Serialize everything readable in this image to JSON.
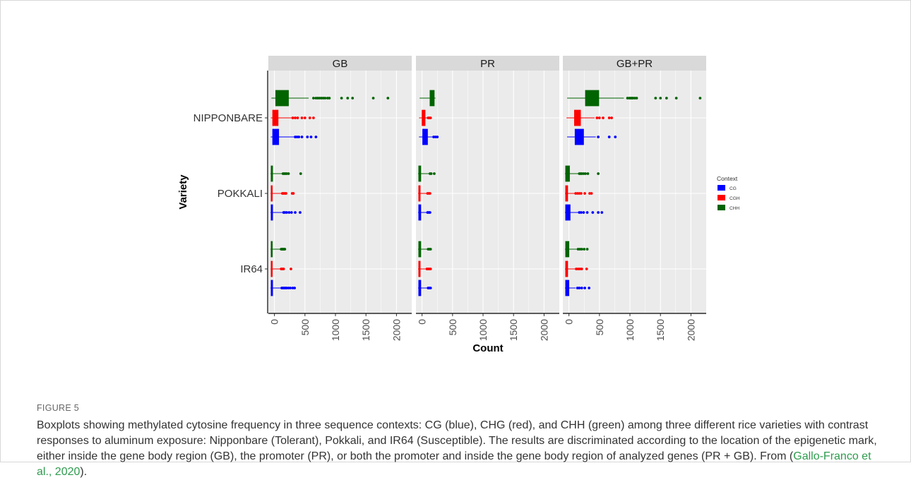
{
  "figure": {
    "label": "FIGURE 5",
    "caption": "Boxplots showing methylated cytosine frequency in three sequence contexts: CG (blue), CHG (red), and CHH (green) among three different rice varieties with contrast responses to aluminum exposure: Nipponbare (Tolerant), Pokkali, and IR64 (Susceptible). The results are discriminated according to the location of the epigenetic mark, either inside the gene body region (GB), the promoter (PR), or both the promoter and inside the gene body region of analyzed genes (PR + GB). From (",
    "citation": "Gallo-Franco et al., 2020",
    "caption_end": ")."
  },
  "colors": {
    "CG": "#0000ff",
    "CGH": "#ff0000",
    "CHH": "#006400",
    "panel_bg": "#ebebeb",
    "strip_bg": "#d9d9d9",
    "grid": "#ffffff"
  },
  "chart_data": {
    "type": "boxplot",
    "orientation": "horizontal",
    "xlabel": "Count",
    "ylabel": "Variety",
    "xlim": [
      -100,
      2250
    ],
    "x_ticks": [
      0,
      500,
      1000,
      1500,
      2000
    ],
    "x_tick_labels": [
      "0",
      "500",
      "1000",
      "1500",
      "2000"
    ],
    "categories": [
      "NIPPONBARE",
      "POKKALI",
      "IR64"
    ],
    "panels": [
      "GB",
      "PR",
      "GB+PR"
    ],
    "legend": {
      "title": "Context",
      "entries": [
        "CG",
        "CGH",
        "CHH"
      ],
      "position": "right"
    },
    "series": [
      {
        "panel": "GB",
        "variety": "NIPPONBARE",
        "context": "CHH",
        "q1": 20,
        "median": 150,
        "q3": 230,
        "wmin": -50,
        "wmax": 560,
        "outliers": [
          640,
          680,
          710,
          740,
          770,
          800,
          830,
          870,
          900,
          1100,
          1200,
          1280,
          1620,
          1860
        ]
      },
      {
        "panel": "GB",
        "variety": "NIPPONBARE",
        "context": "CGH",
        "q1": -30,
        "median": 20,
        "q3": 60,
        "wmin": -60,
        "wmax": 280,
        "outliers": [
          300,
          340,
          380,
          450,
          500,
          580,
          640
        ]
      },
      {
        "panel": "GB",
        "variety": "NIPPONBARE",
        "context": "CG",
        "q1": -30,
        "median": 10,
        "q3": 70,
        "wmin": -60,
        "wmax": 320,
        "outliers": [
          340,
          370,
          400,
          450,
          540,
          600,
          680
        ]
      },
      {
        "panel": "GB",
        "variety": "POKKALI",
        "context": "CHH",
        "q1": -55,
        "median": -45,
        "q3": -30,
        "wmin": -65,
        "wmax": 120,
        "outliers": [
          140,
          160,
          180,
          200,
          230,
          430
        ]
      },
      {
        "panel": "GB",
        "variety": "POKKALI",
        "context": "CGH",
        "q1": -55,
        "median": -45,
        "q3": -35,
        "wmin": -65,
        "wmax": 110,
        "outliers": [
          130,
          150,
          170,
          190,
          290,
          310
        ]
      },
      {
        "panel": "GB",
        "variety": "POKKALI",
        "context": "CG",
        "q1": -55,
        "median": -45,
        "q3": -30,
        "wmin": -65,
        "wmax": 130,
        "outliers": [
          150,
          170,
          200,
          240,
          280,
          340,
          420
        ]
      },
      {
        "panel": "GB",
        "variety": "IR64",
        "context": "CHH",
        "q1": -55,
        "median": -45,
        "q3": -35,
        "wmin": -65,
        "wmax": 100,
        "outliers": [
          110,
          120,
          130,
          140,
          150,
          160,
          170
        ]
      },
      {
        "panel": "GB",
        "variety": "IR64",
        "context": "CGH",
        "q1": -55,
        "median": -45,
        "q3": -35,
        "wmin": -65,
        "wmax": 90,
        "outliers": [
          110,
          130,
          150,
          270
        ]
      },
      {
        "panel": "GB",
        "variety": "IR64",
        "context": "CG",
        "q1": -55,
        "median": -45,
        "q3": -30,
        "wmin": -65,
        "wmax": 110,
        "outliers": [
          120,
          140,
          160,
          180,
          200,
          230,
          260,
          300,
          330
        ]
      },
      {
        "panel": "PR",
        "variety": "NIPPONBARE",
        "context": "CHH",
        "q1": 130,
        "median": 160,
        "q3": 200,
        "wmin": -40,
        "wmax": 220,
        "outliers": []
      },
      {
        "panel": "PR",
        "variety": "NIPPONBARE",
        "context": "CGH",
        "q1": 0,
        "median": 30,
        "q3": 50,
        "wmin": -50,
        "wmax": 90,
        "outliers": [
          100,
          120,
          140
        ]
      },
      {
        "panel": "PR",
        "variety": "NIPPONBARE",
        "context": "CG",
        "q1": 10,
        "median": 40,
        "q3": 90,
        "wmin": -50,
        "wmax": 170,
        "outliers": [
          190,
          220,
          250
        ]
      },
      {
        "panel": "PR",
        "variety": "POKKALI",
        "context": "CHH",
        "q1": -55,
        "median": -45,
        "q3": -20,
        "wmin": -65,
        "wmax": 110,
        "outliers": [
          130,
          150,
          200
        ]
      },
      {
        "panel": "PR",
        "variety": "POKKALI",
        "context": "CGH",
        "q1": -55,
        "median": -45,
        "q3": -30,
        "wmin": -65,
        "wmax": 70,
        "outliers": [
          90,
          110,
          130
        ]
      },
      {
        "panel": "PR",
        "variety": "POKKALI",
        "context": "CG",
        "q1": -55,
        "median": -45,
        "q3": -20,
        "wmin": -65,
        "wmax": 70,
        "outliers": [
          90,
          110,
          130
        ]
      },
      {
        "panel": "PR",
        "variety": "IR64",
        "context": "CHH",
        "q1": -55,
        "median": -45,
        "q3": -20,
        "wmin": -65,
        "wmax": 80,
        "outliers": [
          100,
          120,
          140
        ]
      },
      {
        "panel": "PR",
        "variety": "IR64",
        "context": "CGH",
        "q1": -55,
        "median": -45,
        "q3": -30,
        "wmin": -65,
        "wmax": 60,
        "outliers": [
          80,
          100,
          120,
          140
        ]
      },
      {
        "panel": "PR",
        "variety": "IR64",
        "context": "CG",
        "q1": -55,
        "median": -45,
        "q3": -20,
        "wmin": -65,
        "wmax": 80,
        "outliers": [
          100,
          120,
          140
        ]
      },
      {
        "panel": "GB+PR",
        "variety": "NIPPONBARE",
        "context": "CHH",
        "q1": 270,
        "median": 400,
        "q3": 490,
        "wmin": -30,
        "wmax": 900,
        "outliers": [
          960,
          990,
          1010,
          1030,
          1050,
          1080,
          1110,
          1420,
          1500,
          1600,
          1760,
          2150
        ]
      },
      {
        "panel": "GB+PR",
        "variety": "NIPPONBARE",
        "context": "CGH",
        "q1": 90,
        "median": 140,
        "q3": 190,
        "wmin": -40,
        "wmax": 420,
        "outliers": [
          460,
          500,
          560,
          660,
          700
        ]
      },
      {
        "panel": "GB+PR",
        "variety": "NIPPONBARE",
        "context": "CG",
        "q1": 100,
        "median": 170,
        "q3": 240,
        "wmin": -30,
        "wmax": 440,
        "outliers": [
          480,
          660,
          760
        ]
      },
      {
        "panel": "GB+PR",
        "variety": "POKKALI",
        "context": "CHH",
        "q1": -55,
        "median": -45,
        "q3": 10,
        "wmin": -65,
        "wmax": 150,
        "outliers": [
          170,
          190,
          210,
          240,
          270,
          310,
          480
        ]
      },
      {
        "panel": "GB+PR",
        "variety": "POKKALI",
        "context": "CGH",
        "q1": -55,
        "median": -45,
        "q3": -20,
        "wmin": -65,
        "wmax": 90,
        "outliers": [
          110,
          140,
          170,
          200,
          260,
          340,
          370
        ]
      },
      {
        "panel": "GB+PR",
        "variety": "POKKALI",
        "context": "CG",
        "q1": -55,
        "median": -45,
        "q3": 20,
        "wmin": -65,
        "wmax": 150,
        "outliers": [
          170,
          200,
          240,
          300,
          390,
          480,
          540
        ]
      },
      {
        "panel": "GB+PR",
        "variety": "IR64",
        "context": "CHH",
        "q1": -55,
        "median": -45,
        "q3": 0,
        "wmin": -65,
        "wmax": 130,
        "outliers": [
          150,
          180,
          210,
          250,
          300
        ]
      },
      {
        "panel": "GB+PR",
        "variety": "IR64",
        "context": "CGH",
        "q1": -55,
        "median": -45,
        "q3": -20,
        "wmin": -65,
        "wmax": 100,
        "outliers": [
          120,
          150,
          180,
          210,
          290
        ]
      },
      {
        "panel": "GB+PR",
        "variety": "IR64",
        "context": "CG",
        "q1": -55,
        "median": -45,
        "q3": 0,
        "wmin": -65,
        "wmax": 110,
        "outliers": [
          140,
          170,
          210,
          260,
          330
        ]
      }
    ]
  }
}
